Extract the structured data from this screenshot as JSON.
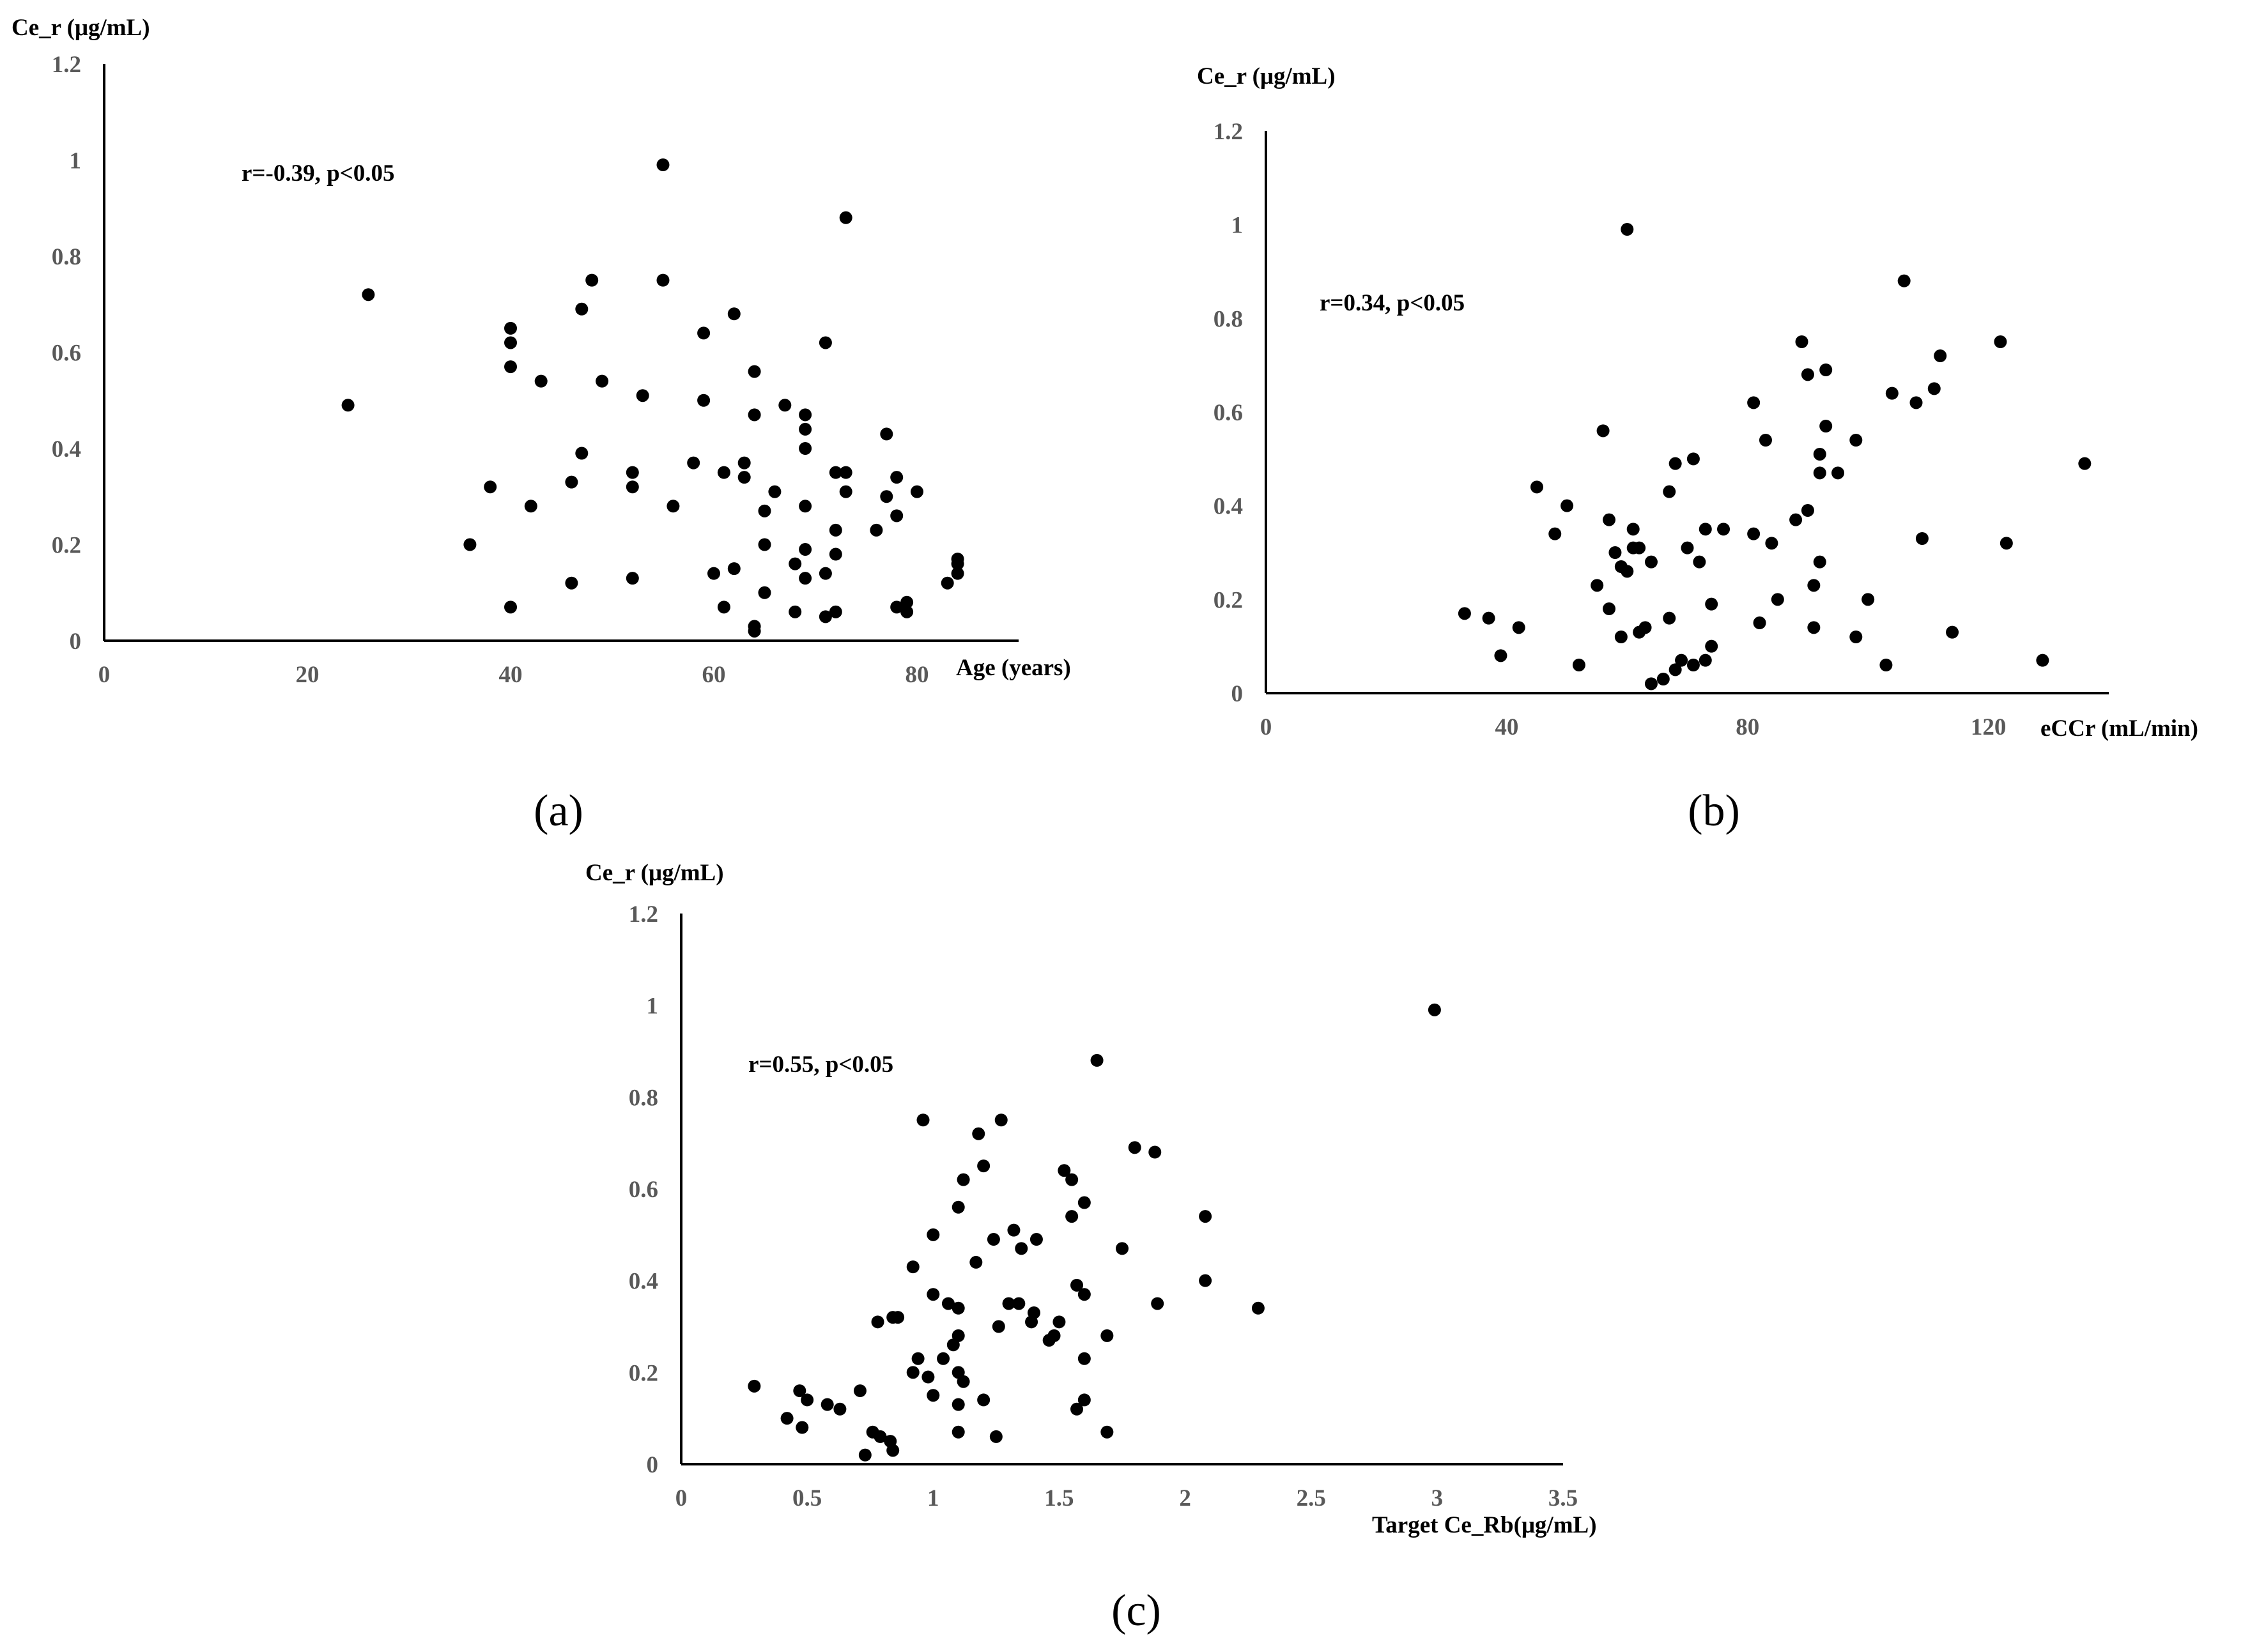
{
  "colors": {
    "point": "#000000",
    "axis": "#000000",
    "tick_label": "#595959"
  },
  "chart_data": [
    {
      "type": "scatter",
      "panel_label": "(a)",
      "xlabel": "Age (years)",
      "ylabel": "Ce_r (μg/mL)",
      "annotation": "r=-0.39, p<0.05",
      "xlim": [
        0,
        90
      ],
      "ylim": [
        0,
        1.2
      ],
      "x_ticks": [
        0,
        20,
        40,
        60,
        80
      ],
      "x_tick_labels": [
        "0",
        "20",
        "40",
        "60",
        "80"
      ],
      "y_ticks": [
        0,
        0.2,
        0.4,
        0.6,
        0.8,
        1,
        1.2
      ],
      "y_tick_labels": [
        "0",
        "0.2",
        "0.4",
        "0.6",
        "0.8",
        "1",
        "1.2"
      ],
      "grid": false,
      "points": [
        [
          24,
          0.49
        ],
        [
          26,
          0.72
        ],
        [
          36,
          0.2
        ],
        [
          38,
          0.32
        ],
        [
          40,
          0.65
        ],
        [
          40,
          0.62
        ],
        [
          40,
          0.57
        ],
        [
          40,
          0.07
        ],
        [
          42,
          0.28
        ],
        [
          43,
          0.54
        ],
        [
          46,
          0.33
        ],
        [
          46,
          0.12
        ],
        [
          47,
          0.69
        ],
        [
          47,
          0.39
        ],
        [
          48,
          0.75
        ],
        [
          49,
          0.54
        ],
        [
          52,
          0.35
        ],
        [
          52,
          0.32
        ],
        [
          52,
          0.13
        ],
        [
          53,
          0.51
        ],
        [
          55,
          0.99
        ],
        [
          55,
          0.75
        ],
        [
          56,
          0.28
        ],
        [
          58,
          0.37
        ],
        [
          59,
          0.64
        ],
        [
          59,
          0.5
        ],
        [
          60,
          0.14
        ],
        [
          61,
          0.35
        ],
        [
          61,
          0.07
        ],
        [
          62,
          0.68
        ],
        [
          62,
          0.15
        ],
        [
          63,
          0.37
        ],
        [
          63,
          0.34
        ],
        [
          64,
          0.56
        ],
        [
          64,
          0.47
        ],
        [
          64,
          0.03
        ],
        [
          64,
          0.02
        ],
        [
          65,
          0.27
        ],
        [
          65,
          0.2
        ],
        [
          65,
          0.1
        ],
        [
          66,
          0.31
        ],
        [
          67,
          0.49
        ],
        [
          68,
          0.16
        ],
        [
          68,
          0.06
        ],
        [
          69,
          0.47
        ],
        [
          69,
          0.44
        ],
        [
          69,
          0.4
        ],
        [
          69,
          0.28
        ],
        [
          69,
          0.19
        ],
        [
          69,
          0.13
        ],
        [
          71,
          0.62
        ],
        [
          71,
          0.14
        ],
        [
          71,
          0.05
        ],
        [
          72,
          0.35
        ],
        [
          72,
          0.23
        ],
        [
          72,
          0.18
        ],
        [
          72,
          0.06
        ],
        [
          73,
          0.88
        ],
        [
          73,
          0.35
        ],
        [
          73,
          0.31
        ],
        [
          76,
          0.23
        ],
        [
          77,
          0.43
        ],
        [
          77,
          0.3
        ],
        [
          78,
          0.34
        ],
        [
          78,
          0.26
        ],
        [
          78,
          0.07
        ],
        [
          79,
          0.08
        ],
        [
          79,
          0.06
        ],
        [
          80,
          0.31
        ],
        [
          83,
          0.12
        ],
        [
          84,
          0.17
        ],
        [
          84,
          0.16
        ],
        [
          84,
          0.14
        ]
      ]
    },
    {
      "type": "scatter",
      "panel_label": "(b)",
      "xlabel": "eCCr (mL/min)",
      "ylabel": "Ce_r (μg/mL)",
      "annotation": "r=0.34, p<0.05",
      "xlim": [
        0,
        140
      ],
      "ylim": [
        0,
        1.2
      ],
      "x_ticks": [
        0,
        40,
        80,
        120
      ],
      "x_tick_labels": [
        "0",
        "40",
        "80",
        "120"
      ],
      "y_ticks": [
        0,
        0.2,
        0.4,
        0.6,
        0.8,
        1,
        1.2
      ],
      "y_tick_labels": [
        "0",
        "0.2",
        "0.4",
        "0.6",
        "0.8",
        "1",
        "1.2"
      ],
      "grid": false,
      "points": [
        [
          33,
          0.17
        ],
        [
          37,
          0.16
        ],
        [
          39,
          0.08
        ],
        [
          42,
          0.14
        ],
        [
          45,
          0.44
        ],
        [
          48,
          0.34
        ],
        [
          50,
          0.4
        ],
        [
          52,
          0.06
        ],
        [
          55,
          0.23
        ],
        [
          56,
          0.56
        ],
        [
          57,
          0.37
        ],
        [
          57,
          0.18
        ],
        [
          58,
          0.3
        ],
        [
          59,
          0.27
        ],
        [
          59,
          0.12
        ],
        [
          60,
          0.99
        ],
        [
          60,
          0.26
        ],
        [
          61,
          0.35
        ],
        [
          61,
          0.31
        ],
        [
          62,
          0.31
        ],
        [
          62,
          0.13
        ],
        [
          63,
          0.14
        ],
        [
          64,
          0.28
        ],
        [
          64,
          0.02
        ],
        [
          66,
          0.03
        ],
        [
          67,
          0.43
        ],
        [
          67,
          0.16
        ],
        [
          68,
          0.49
        ],
        [
          68,
          0.05
        ],
        [
          69,
          0.07
        ],
        [
          70,
          0.31
        ],
        [
          71,
          0.06
        ],
        [
          71,
          0.5
        ],
        [
          72,
          0.28
        ],
        [
          73,
          0.35
        ],
        [
          73,
          0.07
        ],
        [
          74,
          0.19
        ],
        [
          74,
          0.1
        ],
        [
          76,
          0.35
        ],
        [
          81,
          0.34
        ],
        [
          81,
          0.62
        ],
        [
          82,
          0.15
        ],
        [
          83,
          0.54
        ],
        [
          84,
          0.32
        ],
        [
          85,
          0.2
        ],
        [
          88,
          0.37
        ],
        [
          89,
          0.75
        ],
        [
          90,
          0.68
        ],
        [
          90,
          0.39
        ],
        [
          91,
          0.23
        ],
        [
          91,
          0.14
        ],
        [
          92,
          0.28
        ],
        [
          92,
          0.47
        ],
        [
          92,
          0.51
        ],
        [
          93,
          0.57
        ],
        [
          93,
          0.69
        ],
        [
          95,
          0.47
        ],
        [
          98,
          0.54
        ],
        [
          98,
          0.12
        ],
        [
          100,
          0.2
        ],
        [
          103,
          0.06
        ],
        [
          104,
          0.64
        ],
        [
          106,
          0.88
        ],
        [
          108,
          0.62
        ],
        [
          109,
          0.33
        ],
        [
          111,
          0.65
        ],
        [
          112,
          0.72
        ],
        [
          114,
          0.13
        ],
        [
          122,
          0.75
        ],
        [
          123,
          0.32
        ],
        [
          129,
          0.07
        ],
        [
          136,
          0.49
        ]
      ]
    },
    {
      "type": "scatter",
      "panel_label": "(c)",
      "xlabel": "Target Ce_Rb(μg/mL)",
      "ylabel": "Ce_r (μg/mL)",
      "annotation": "r=0.55, p<0.05",
      "xlim": [
        0,
        3.5
      ],
      "ylim": [
        0,
        1.2
      ],
      "x_ticks": [
        0,
        0.5,
        1,
        1.5,
        2,
        2.5,
        3,
        3.5
      ],
      "x_tick_labels": [
        "0",
        "0.5",
        "1",
        "1.5",
        "2",
        "2.5",
        "3",
        "3.5"
      ],
      "y_ticks": [
        0,
        0.2,
        0.4,
        0.6,
        0.8,
        1,
        1.2
      ],
      "y_tick_labels": [
        "0",
        "0.2",
        "0.4",
        "0.6",
        "0.8",
        "1",
        "1.2"
      ],
      "grid": false,
      "points": [
        [
          0.29,
          0.17
        ],
        [
          0.42,
          0.1
        ],
        [
          0.47,
          0.16
        ],
        [
          0.48,
          0.08
        ],
        [
          0.5,
          0.14
        ],
        [
          0.58,
          0.13
        ],
        [
          0.63,
          0.12
        ],
        [
          0.71,
          0.16
        ],
        [
          0.73,
          0.02
        ],
        [
          0.76,
          0.07
        ],
        [
          0.78,
          0.31
        ],
        [
          0.79,
          0.06
        ],
        [
          0.83,
          0.05
        ],
        [
          0.84,
          0.32
        ],
        [
          0.84,
          0.03
        ],
        [
          0.86,
          0.32
        ],
        [
          0.92,
          0.43
        ],
        [
          0.92,
          0.2
        ],
        [
          0.94,
          0.23
        ],
        [
          0.96,
          0.75
        ],
        [
          0.98,
          0.19
        ],
        [
          1.0,
          0.37
        ],
        [
          1.0,
          0.5
        ],
        [
          1.0,
          0.15
        ],
        [
          1.04,
          0.23
        ],
        [
          1.06,
          0.35
        ],
        [
          1.08,
          0.26
        ],
        [
          1.1,
          0.56
        ],
        [
          1.1,
          0.34
        ],
        [
          1.1,
          0.28
        ],
        [
          1.1,
          0.2
        ],
        [
          1.1,
          0.13
        ],
        [
          1.1,
          0.07
        ],
        [
          1.12,
          0.62
        ],
        [
          1.12,
          0.18
        ],
        [
          1.17,
          0.44
        ],
        [
          1.18,
          0.72
        ],
        [
          1.2,
          0.65
        ],
        [
          1.2,
          0.14
        ],
        [
          1.24,
          0.49
        ],
        [
          1.25,
          0.06
        ],
        [
          1.26,
          0.3
        ],
        [
          1.27,
          0.75
        ],
        [
          1.3,
          0.35
        ],
        [
          1.32,
          0.51
        ],
        [
          1.34,
          0.35
        ],
        [
          1.35,
          0.47
        ],
        [
          1.39,
          0.31
        ],
        [
          1.4,
          0.33
        ],
        [
          1.41,
          0.49
        ],
        [
          1.46,
          0.27
        ],
        [
          1.48,
          0.28
        ],
        [
          1.5,
          0.31
        ],
        [
          1.52,
          0.64
        ],
        [
          1.55,
          0.62
        ],
        [
          1.55,
          0.54
        ],
        [
          1.57,
          0.39
        ],
        [
          1.57,
          0.12
        ],
        [
          1.6,
          0.57
        ],
        [
          1.6,
          0.37
        ],
        [
          1.6,
          0.23
        ],
        [
          1.6,
          0.14
        ],
        [
          1.65,
          0.88
        ],
        [
          1.69,
          0.28
        ],
        [
          1.69,
          0.07
        ],
        [
          1.75,
          0.47
        ],
        [
          1.8,
          0.69
        ],
        [
          1.88,
          0.68
        ],
        [
          1.89,
          0.35
        ],
        [
          2.08,
          0.54
        ],
        [
          2.08,
          0.4
        ],
        [
          2.29,
          0.34
        ],
        [
          2.99,
          0.99
        ]
      ]
    }
  ]
}
